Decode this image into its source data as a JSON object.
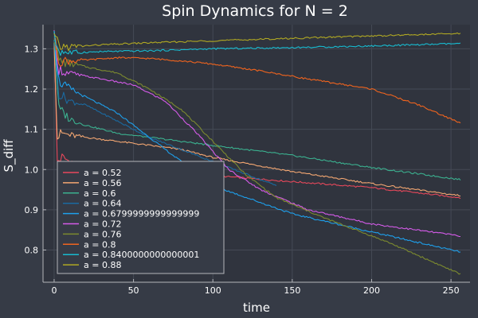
{
  "chart_data": {
    "type": "line",
    "title": "Spin Dynamics for N = 2",
    "xlabel": "time",
    "ylabel": "S_diff",
    "xlim": [
      -7,
      262
    ],
    "ylim": [
      0.72,
      1.36
    ],
    "x_ticks": [
      0,
      50,
      100,
      150,
      200,
      250
    ],
    "x_tick_labels": [
      "0",
      "50",
      "100",
      "150",
      "200",
      "250"
    ],
    "y_ticks": [
      0.8,
      0.9,
      1.0,
      1.1,
      1.2,
      1.3
    ],
    "y_tick_labels": [
      "0.8",
      "0.9",
      "1.0",
      "1.1",
      "1.2",
      "1.3"
    ],
    "grid": true,
    "legend_position": "bottom-left",
    "colors": {
      "background": "#363b46",
      "plot_background": "#30343e",
      "grid": "#454a55",
      "axis": "#b4b6bb",
      "text": "#ffffff"
    },
    "series": [
      {
        "name": "a = 0.52",
        "color": "#e8485b",
        "points": [
          [
            0,
            1.33
          ],
          [
            2,
            1.02
          ],
          [
            5,
            1.03
          ],
          [
            10,
            1.02
          ],
          [
            20,
            1.01
          ],
          [
            40,
            1.005
          ],
          [
            60,
            0.995
          ],
          [
            80,
            0.99
          ],
          [
            100,
            0.985
          ],
          [
            150,
            0.97
          ],
          [
            200,
            0.955
          ],
          [
            256,
            0.93
          ]
        ]
      },
      {
        "name": "a = 0.56",
        "color": "#f4a772",
        "points": [
          [
            0,
            1.33
          ],
          [
            2,
            1.08
          ],
          [
            5,
            1.09
          ],
          [
            10,
            1.085
          ],
          [
            20,
            1.08
          ],
          [
            40,
            1.07
          ],
          [
            60,
            1.06
          ],
          [
            80,
            1.05
          ],
          [
            100,
            1.03
          ],
          [
            150,
            0.995
          ],
          [
            200,
            0.965
          ],
          [
            256,
            0.935
          ]
        ]
      },
      {
        "name": "a = 0.6",
        "color": "#3bb08f",
        "points": [
          [
            0,
            1.33
          ],
          [
            3,
            1.15
          ],
          [
            6,
            1.14
          ],
          [
            10,
            1.125
          ],
          [
            20,
            1.11
          ],
          [
            40,
            1.09
          ],
          [
            60,
            1.08
          ],
          [
            80,
            1.07
          ],
          [
            100,
            1.06
          ],
          [
            150,
            1.035
          ],
          [
            200,
            1.005
          ],
          [
            256,
            0.975
          ]
        ]
      },
      {
        "name": "a = 0.64",
        "color": "#1b6aa0",
        "points": [
          [
            0,
            1.33
          ],
          [
            3,
            1.19
          ],
          [
            6,
            1.18
          ],
          [
            10,
            1.17
          ],
          [
            20,
            1.16
          ],
          [
            40,
            1.12
          ],
          [
            60,
            1.08
          ],
          [
            80,
            1.05
          ],
          [
            100,
            1.02
          ],
          [
            120,
            0.99
          ],
          [
            140,
            0.96
          ]
        ]
      },
      {
        "name": "a = 0.6799999999999999",
        "color": "#1ea0ec",
        "points": [
          [
            0,
            1.33
          ],
          [
            3,
            1.22
          ],
          [
            6,
            1.21
          ],
          [
            10,
            1.2
          ],
          [
            20,
            1.18
          ],
          [
            40,
            1.14
          ],
          [
            60,
            1.08
          ],
          [
            80,
            1.02
          ],
          [
            90,
            0.99
          ],
          [
            100,
            0.96
          ],
          [
            150,
            0.89
          ],
          [
            200,
            0.845
          ],
          [
            256,
            0.795
          ]
        ]
      },
      {
        "name": "a = 0.72",
        "color": "#d45be8",
        "points": [
          [
            0,
            1.33
          ],
          [
            3,
            1.25
          ],
          [
            8,
            1.24
          ],
          [
            15,
            1.235
          ],
          [
            30,
            1.225
          ],
          [
            50,
            1.21
          ],
          [
            70,
            1.17
          ],
          [
            90,
            1.09
          ],
          [
            110,
            1.0
          ],
          [
            130,
            0.95
          ],
          [
            160,
            0.9
          ],
          [
            200,
            0.865
          ],
          [
            256,
            0.835
          ]
        ]
      },
      {
        "name": "a = 0.76",
        "color": "#7c8a2f",
        "points": [
          [
            0,
            1.33
          ],
          [
            3,
            1.27
          ],
          [
            8,
            1.265
          ],
          [
            20,
            1.255
          ],
          [
            40,
            1.24
          ],
          [
            60,
            1.2
          ],
          [
            80,
            1.15
          ],
          [
            100,
            1.07
          ],
          [
            120,
            0.99
          ],
          [
            140,
            0.93
          ],
          [
            170,
            0.88
          ],
          [
            210,
            0.82
          ],
          [
            256,
            0.74
          ]
        ]
      },
      {
        "name": "a = 0.8",
        "color": "#f0641e",
        "points": [
          [
            0,
            1.33
          ],
          [
            3,
            1.27
          ],
          [
            10,
            1.27
          ],
          [
            20,
            1.272
          ],
          [
            40,
            1.278
          ],
          [
            60,
            1.276
          ],
          [
            80,
            1.27
          ],
          [
            100,
            1.262
          ],
          [
            130,
            1.245
          ],
          [
            160,
            1.225
          ],
          [
            200,
            1.2
          ],
          [
            230,
            1.16
          ],
          [
            256,
            1.115
          ]
        ]
      },
      {
        "name": "a = 0.8400000000000001",
        "color": "#17bbd0",
        "points": [
          [
            0,
            1.33
          ],
          [
            3,
            1.295
          ],
          [
            10,
            1.29
          ],
          [
            30,
            1.293
          ],
          [
            60,
            1.295
          ],
          [
            100,
            1.3
          ],
          [
            150,
            1.303
          ],
          [
            200,
            1.307
          ],
          [
            256,
            1.313
          ]
        ]
      },
      {
        "name": "a = 0.88",
        "color": "#b0a823",
        "points": [
          [
            0,
            1.33
          ],
          [
            3,
            1.305
          ],
          [
            10,
            1.305
          ],
          [
            30,
            1.31
          ],
          [
            60,
            1.315
          ],
          [
            100,
            1.32
          ],
          [
            150,
            1.326
          ],
          [
            200,
            1.332
          ],
          [
            256,
            1.338
          ]
        ]
      }
    ]
  }
}
